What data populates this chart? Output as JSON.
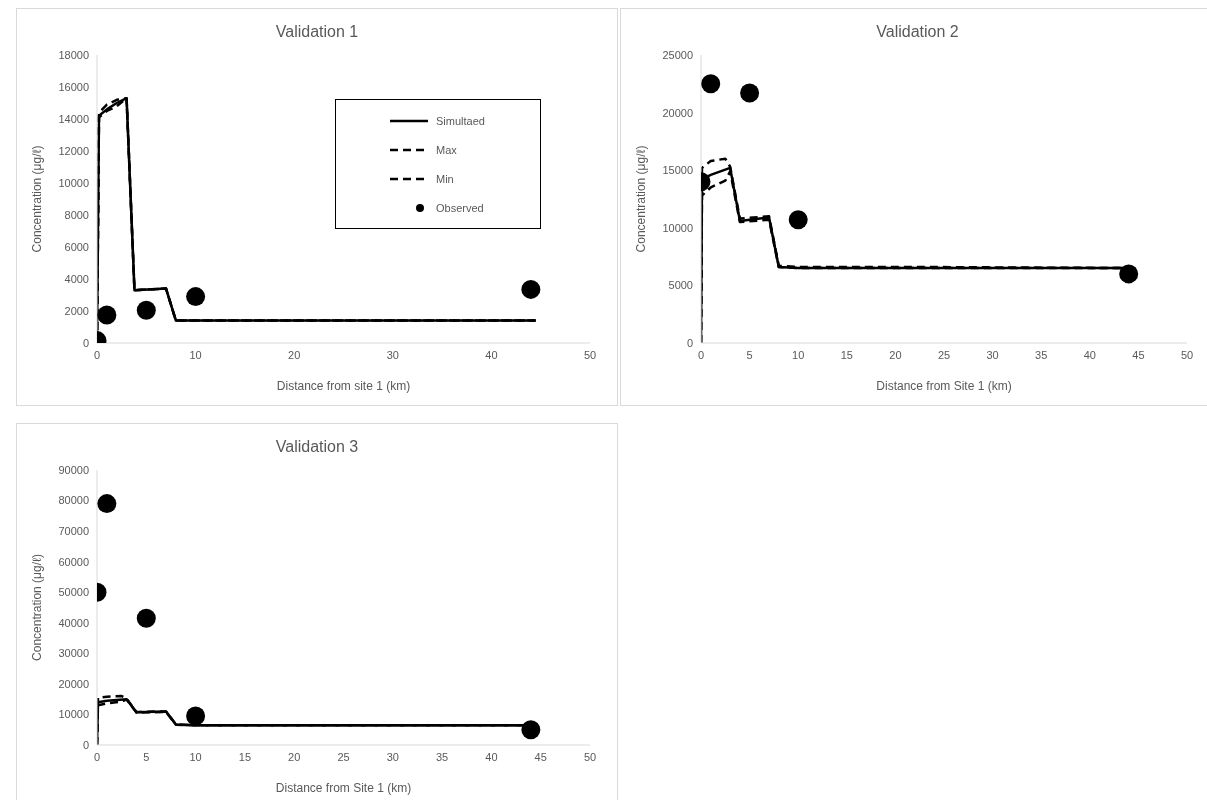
{
  "chart_data": [
    {
      "type": "line",
      "title": "Validation 1",
      "xlabel": "Distance from site 1 (km)",
      "ylabel": "Concentration (μg/ℓ)",
      "xlim": [
        0,
        50
      ],
      "xticks": [
        0,
        10,
        20,
        30,
        40,
        50
      ],
      "ylim": [
        0,
        18000
      ],
      "yticks": [
        0,
        2000,
        4000,
        6000,
        8000,
        10000,
        12000,
        14000,
        16000,
        18000
      ],
      "legend": "top right",
      "series": [
        {
          "name": "Simultaed",
          "color": "#000000",
          "line_style": "solid",
          "marker": "none",
          "x": [
            0,
            0.2,
            1,
            2,
            3,
            3.8,
            7,
            8,
            44.5
          ],
          "values": [
            0,
            14200,
            14600,
            15000,
            15300,
            3300,
            3400,
            1400,
            1400
          ]
        },
        {
          "name": "Max",
          "color": "#000000",
          "line_style": "dashed",
          "marker": "none",
          "x": [
            0,
            0.2,
            1,
            2,
            3,
            3.8,
            7,
            8,
            44.5
          ],
          "values": [
            0,
            14400,
            14900,
            15200,
            15300,
            3300,
            3400,
            1400,
            1400
          ]
        },
        {
          "name": "Min",
          "color": "#000000",
          "line_style": "dashed",
          "marker": "none",
          "x": [
            0,
            0.2,
            1,
            2,
            3,
            3.8,
            7,
            8,
            44.5
          ],
          "values": [
            0,
            14100,
            14500,
            14800,
            15300,
            3300,
            3400,
            1400,
            1400
          ]
        },
        {
          "name": "Observed",
          "type": "scatter",
          "color": "#000000",
          "marker": "circle",
          "x": [
            0,
            1,
            5,
            10,
            44
          ],
          "values": [
            150,
            1750,
            2050,
            2900,
            3350
          ]
        }
      ]
    },
    {
      "type": "line",
      "title": "Validation 2",
      "xlabel": "Distance from Site 1 (km)",
      "ylabel": "Concentration (μg/ℓ)",
      "xlim": [
        0,
        50
      ],
      "xticks": [
        0,
        5,
        10,
        15,
        20,
        25,
        30,
        35,
        40,
        45,
        50
      ],
      "ylim": [
        0,
        25000
      ],
      "yticks": [
        0,
        5000,
        10000,
        15000,
        20000,
        25000
      ],
      "series": [
        {
          "color": "#000000",
          "line_style": "solid",
          "marker": "none",
          "x": [
            0,
            0.1,
            1,
            3,
            4,
            7,
            8,
            10,
            44.5
          ],
          "values": [
            0,
            14200,
            14600,
            15200,
            10600,
            10900,
            6600,
            6500,
            6500
          ]
        },
        {
          "color": "#000000",
          "line_style": "dashed",
          "marker": "none",
          "x": [
            0,
            0.1,
            1,
            2.5,
            3,
            4,
            7,
            8,
            10,
            22,
            44.5
          ],
          "values": [
            0,
            15200,
            15800,
            16000,
            15300,
            10800,
            11000,
            6700,
            6600,
            6600,
            6500
          ]
        },
        {
          "color": "#000000",
          "line_style": "dashed",
          "marker": "none",
          "x": [
            0,
            0.1,
            1,
            2.5,
            3,
            4,
            7,
            8,
            10,
            44.5
          ],
          "values": [
            0,
            12800,
            13500,
            14100,
            14900,
            10500,
            10700,
            6600,
            6500,
            6500
          ]
        },
        {
          "type": "scatter",
          "color": "#000000",
          "marker": "circle",
          "x": [
            0,
            1,
            5,
            10,
            44
          ],
          "values": [
            14000,
            22500,
            21700,
            10700,
            6000
          ]
        }
      ]
    },
    {
      "type": "line",
      "title": "Validation 3",
      "xlabel": "Distance from Site 1 (km)",
      "ylabel": "Concentration (μg/ℓ)",
      "xlim": [
        0,
        50
      ],
      "xticks": [
        0,
        5,
        10,
        15,
        20,
        25,
        30,
        35,
        40,
        45,
        50
      ],
      "ylim": [
        0,
        90000
      ],
      "yticks": [
        0,
        10000,
        20000,
        30000,
        40000,
        50000,
        60000,
        70000,
        80000,
        90000
      ],
      "series": [
        {
          "color": "#000000",
          "line_style": "solid",
          "marker": "none",
          "x": [
            0,
            0.1,
            1,
            3,
            4,
            7,
            8,
            10,
            44.5
          ],
          "values": [
            0,
            14000,
            14500,
            15000,
            10700,
            11000,
            6700,
            6500,
            6500
          ]
        },
        {
          "color": "#000000",
          "line_style": "dashed",
          "marker": "none",
          "x": [
            0,
            0.1,
            1,
            2.5,
            3,
            4,
            7,
            8,
            10,
            44.5
          ],
          "values": [
            0,
            15500,
            15800,
            16000,
            15200,
            10800,
            11000,
            6700,
            6500,
            6500
          ]
        },
        {
          "color": "#000000",
          "line_style": "dashed",
          "marker": "none",
          "x": [
            0,
            0.1,
            1,
            2.5,
            3,
            4,
            7,
            8,
            10,
            44.5
          ],
          "values": [
            0,
            13000,
            13600,
            14200,
            14900,
            10600,
            10800,
            6600,
            6500,
            6500
          ]
        },
        {
          "type": "scatter",
          "color": "#000000",
          "marker": "circle",
          "x": [
            0,
            1,
            5,
            10,
            44
          ],
          "values": [
            50000,
            79000,
            41500,
            9500,
            5000
          ]
        }
      ]
    }
  ]
}
